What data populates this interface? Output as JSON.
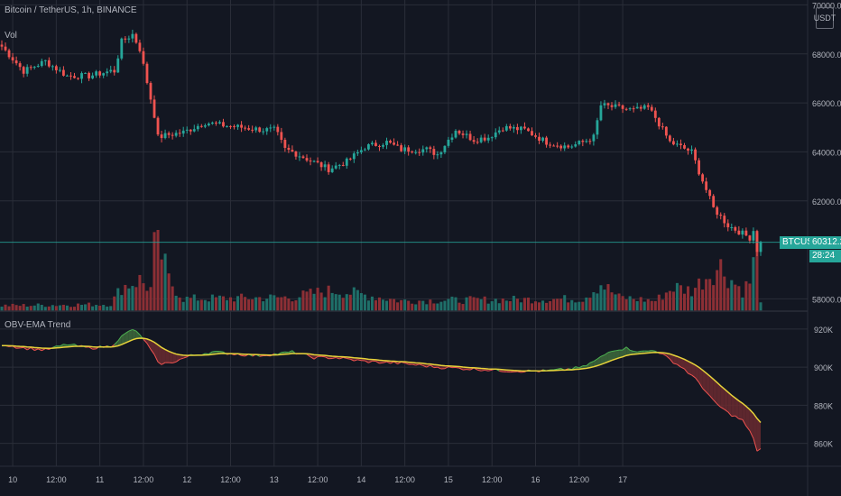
{
  "header": {
    "symbol_line": "Bitcoin / TetherUS, 1h, BINANCE",
    "volume_label": "Vol"
  },
  "axis_button": {
    "label": "USDT"
  },
  "price_axis": {
    "ticks": [
      "70000.00",
      "68000.00",
      "66000.00",
      "64000.00",
      "62000.00",
      "58000.00"
    ]
  },
  "current_price": {
    "symbol": "BTCUSDT",
    "price": "60312.22",
    "countdown": "28:24",
    "color": "#26a69a"
  },
  "indicator": {
    "title": "OBV-EMA Trend",
    "ticks": [
      "920K",
      "900K",
      "880K",
      "860K"
    ]
  },
  "time_axis": {
    "labels": [
      "10",
      "12:00",
      "11",
      "12:00",
      "12",
      "12:00",
      "13",
      "12:00",
      "14",
      "12:00",
      "15",
      "12:00",
      "16",
      "12:00",
      "17"
    ]
  },
  "colors": {
    "background": "#131722",
    "grid": "#2a2e39",
    "up": "#26a69a",
    "down": "#ef5350",
    "volume_up": "#1f6f69",
    "volume_down": "#8c2f35",
    "ema_line": "#e6d23a",
    "fill_up": "#3e6b3c",
    "fill_down": "#6b2a30"
  },
  "chart_data": {
    "type": "candlestick",
    "price_anchors": [
      [
        0,
        68300
      ],
      [
        6,
        67300
      ],
      [
        12,
        67700
      ],
      [
        18,
        67100
      ],
      [
        24,
        67100
      ],
      [
        30,
        67300
      ],
      [
        31,
        67300
      ],
      [
        33,
        68500
      ],
      [
        36,
        68800
      ],
      [
        38,
        68200
      ],
      [
        42,
        65500
      ],
      [
        43,
        64600
      ],
      [
        46,
        64700
      ],
      [
        50,
        64800
      ],
      [
        56,
        65200
      ],
      [
        60,
        65100
      ],
      [
        66,
        65000
      ],
      [
        72,
        64900
      ],
      [
        75,
        64900
      ],
      [
        76,
        64700
      ],
      [
        78,
        64100
      ],
      [
        80,
        64000
      ],
      [
        90,
        63300
      ],
      [
        95,
        63600
      ],
      [
        100,
        64200
      ],
      [
        106,
        64400
      ],
      [
        110,
        64100
      ],
      [
        117,
        64100
      ],
      [
        120,
        63900
      ],
      [
        125,
        64900
      ],
      [
        130,
        64500
      ],
      [
        134,
        64600
      ],
      [
        138,
        65000
      ],
      [
        144,
        64900
      ],
      [
        150,
        64400
      ],
      [
        156,
        64200
      ],
      [
        160,
        64400
      ],
      [
        163,
        64600
      ],
      [
        165,
        65900
      ],
      [
        170,
        65800
      ],
      [
        174,
        65700
      ],
      [
        178,
        65800
      ],
      [
        180,
        65400
      ],
      [
        184,
        64400
      ],
      [
        190,
        64000
      ],
      [
        192,
        63200
      ],
      [
        196,
        61700
      ],
      [
        200,
        61000
      ],
      [
        206,
        60500
      ],
      [
        207,
        60800
      ],
      [
        208,
        60000
      ],
      [
        209,
        60312
      ]
    ],
    "price_ylim": [
      57500,
      70200
    ],
    "volume_anchors": [
      [
        0,
        0.08
      ],
      [
        30,
        0.1
      ],
      [
        33,
        0.35
      ],
      [
        38,
        0.45
      ],
      [
        41,
        0.32
      ],
      [
        42,
        0.9
      ],
      [
        43,
        1.0
      ],
      [
        46,
        0.45
      ],
      [
        50,
        0.18
      ],
      [
        80,
        0.2
      ],
      [
        88,
        0.28
      ],
      [
        92,
        0.3
      ],
      [
        110,
        0.15
      ],
      [
        160,
        0.18
      ],
      [
        165,
        0.4
      ],
      [
        170,
        0.2
      ],
      [
        180,
        0.15
      ],
      [
        185,
        0.35
      ],
      [
        190,
        0.3
      ],
      [
        195,
        0.55
      ],
      [
        198,
        0.65
      ],
      [
        200,
        0.5
      ],
      [
        204,
        0.3
      ],
      [
        206,
        0.42
      ],
      [
        208,
        0.95
      ],
      [
        209,
        0.18
      ]
    ],
    "obv_anchors": [
      [
        0,
        912
      ],
      [
        6,
        910
      ],
      [
        12,
        909
      ],
      [
        18,
        912
      ],
      [
        24,
        910
      ],
      [
        30,
        911
      ],
      [
        33,
        916
      ],
      [
        36,
        920
      ],
      [
        39,
        915
      ],
      [
        42,
        906
      ],
      [
        43,
        902
      ],
      [
        46,
        902
      ],
      [
        52,
        906
      ],
      [
        58,
        908
      ],
      [
        64,
        907
      ],
      [
        70,
        906
      ],
      [
        76,
        907
      ],
      [
        80,
        908
      ],
      [
        86,
        905
      ],
      [
        92,
        905
      ],
      [
        100,
        903
      ],
      [
        110,
        902
      ],
      [
        120,
        900
      ],
      [
        130,
        899
      ],
      [
        140,
        898
      ],
      [
        150,
        898
      ],
      [
        156,
        899
      ],
      [
        160,
        900
      ],
      [
        164,
        904
      ],
      [
        168,
        909
      ],
      [
        172,
        910
      ],
      [
        176,
        908
      ],
      [
        180,
        909
      ],
      [
        184,
        904
      ],
      [
        188,
        899
      ],
      [
        192,
        892
      ],
      [
        196,
        882
      ],
      [
        200,
        876
      ],
      [
        204,
        872
      ],
      [
        207,
        863
      ],
      [
        208,
        856
      ],
      [
        209,
        857
      ]
    ],
    "obv_ylim": [
      848,
      928
    ],
    "ema_period": 14,
    "candle_count": 210,
    "x_ticks": [
      {
        "index": 3,
        "label": "10"
      },
      {
        "index": 15,
        "label": "12:00"
      },
      {
        "index": 27,
        "label": "11"
      },
      {
        "index": 39,
        "label": "12:00"
      },
      {
        "index": 51,
        "label": "12"
      },
      {
        "index": 63,
        "label": "12:00"
      },
      {
        "index": 75,
        "label": "13"
      },
      {
        "index": 87,
        "label": "12:00"
      },
      {
        "index": 99,
        "label": "14"
      },
      {
        "index": 111,
        "label": "12:00"
      },
      {
        "index": 123,
        "label": "15"
      },
      {
        "index": 135,
        "label": "12:00"
      },
      {
        "index": 147,
        "label": "16"
      },
      {
        "index": 159,
        "label": "12:00"
      },
      {
        "index": 171,
        "label": "17"
      }
    ],
    "price_ticks": [
      70000,
      68000,
      66000,
      64000,
      62000,
      58000
    ],
    "obv_ticks": [
      920,
      900,
      880,
      860
    ]
  }
}
